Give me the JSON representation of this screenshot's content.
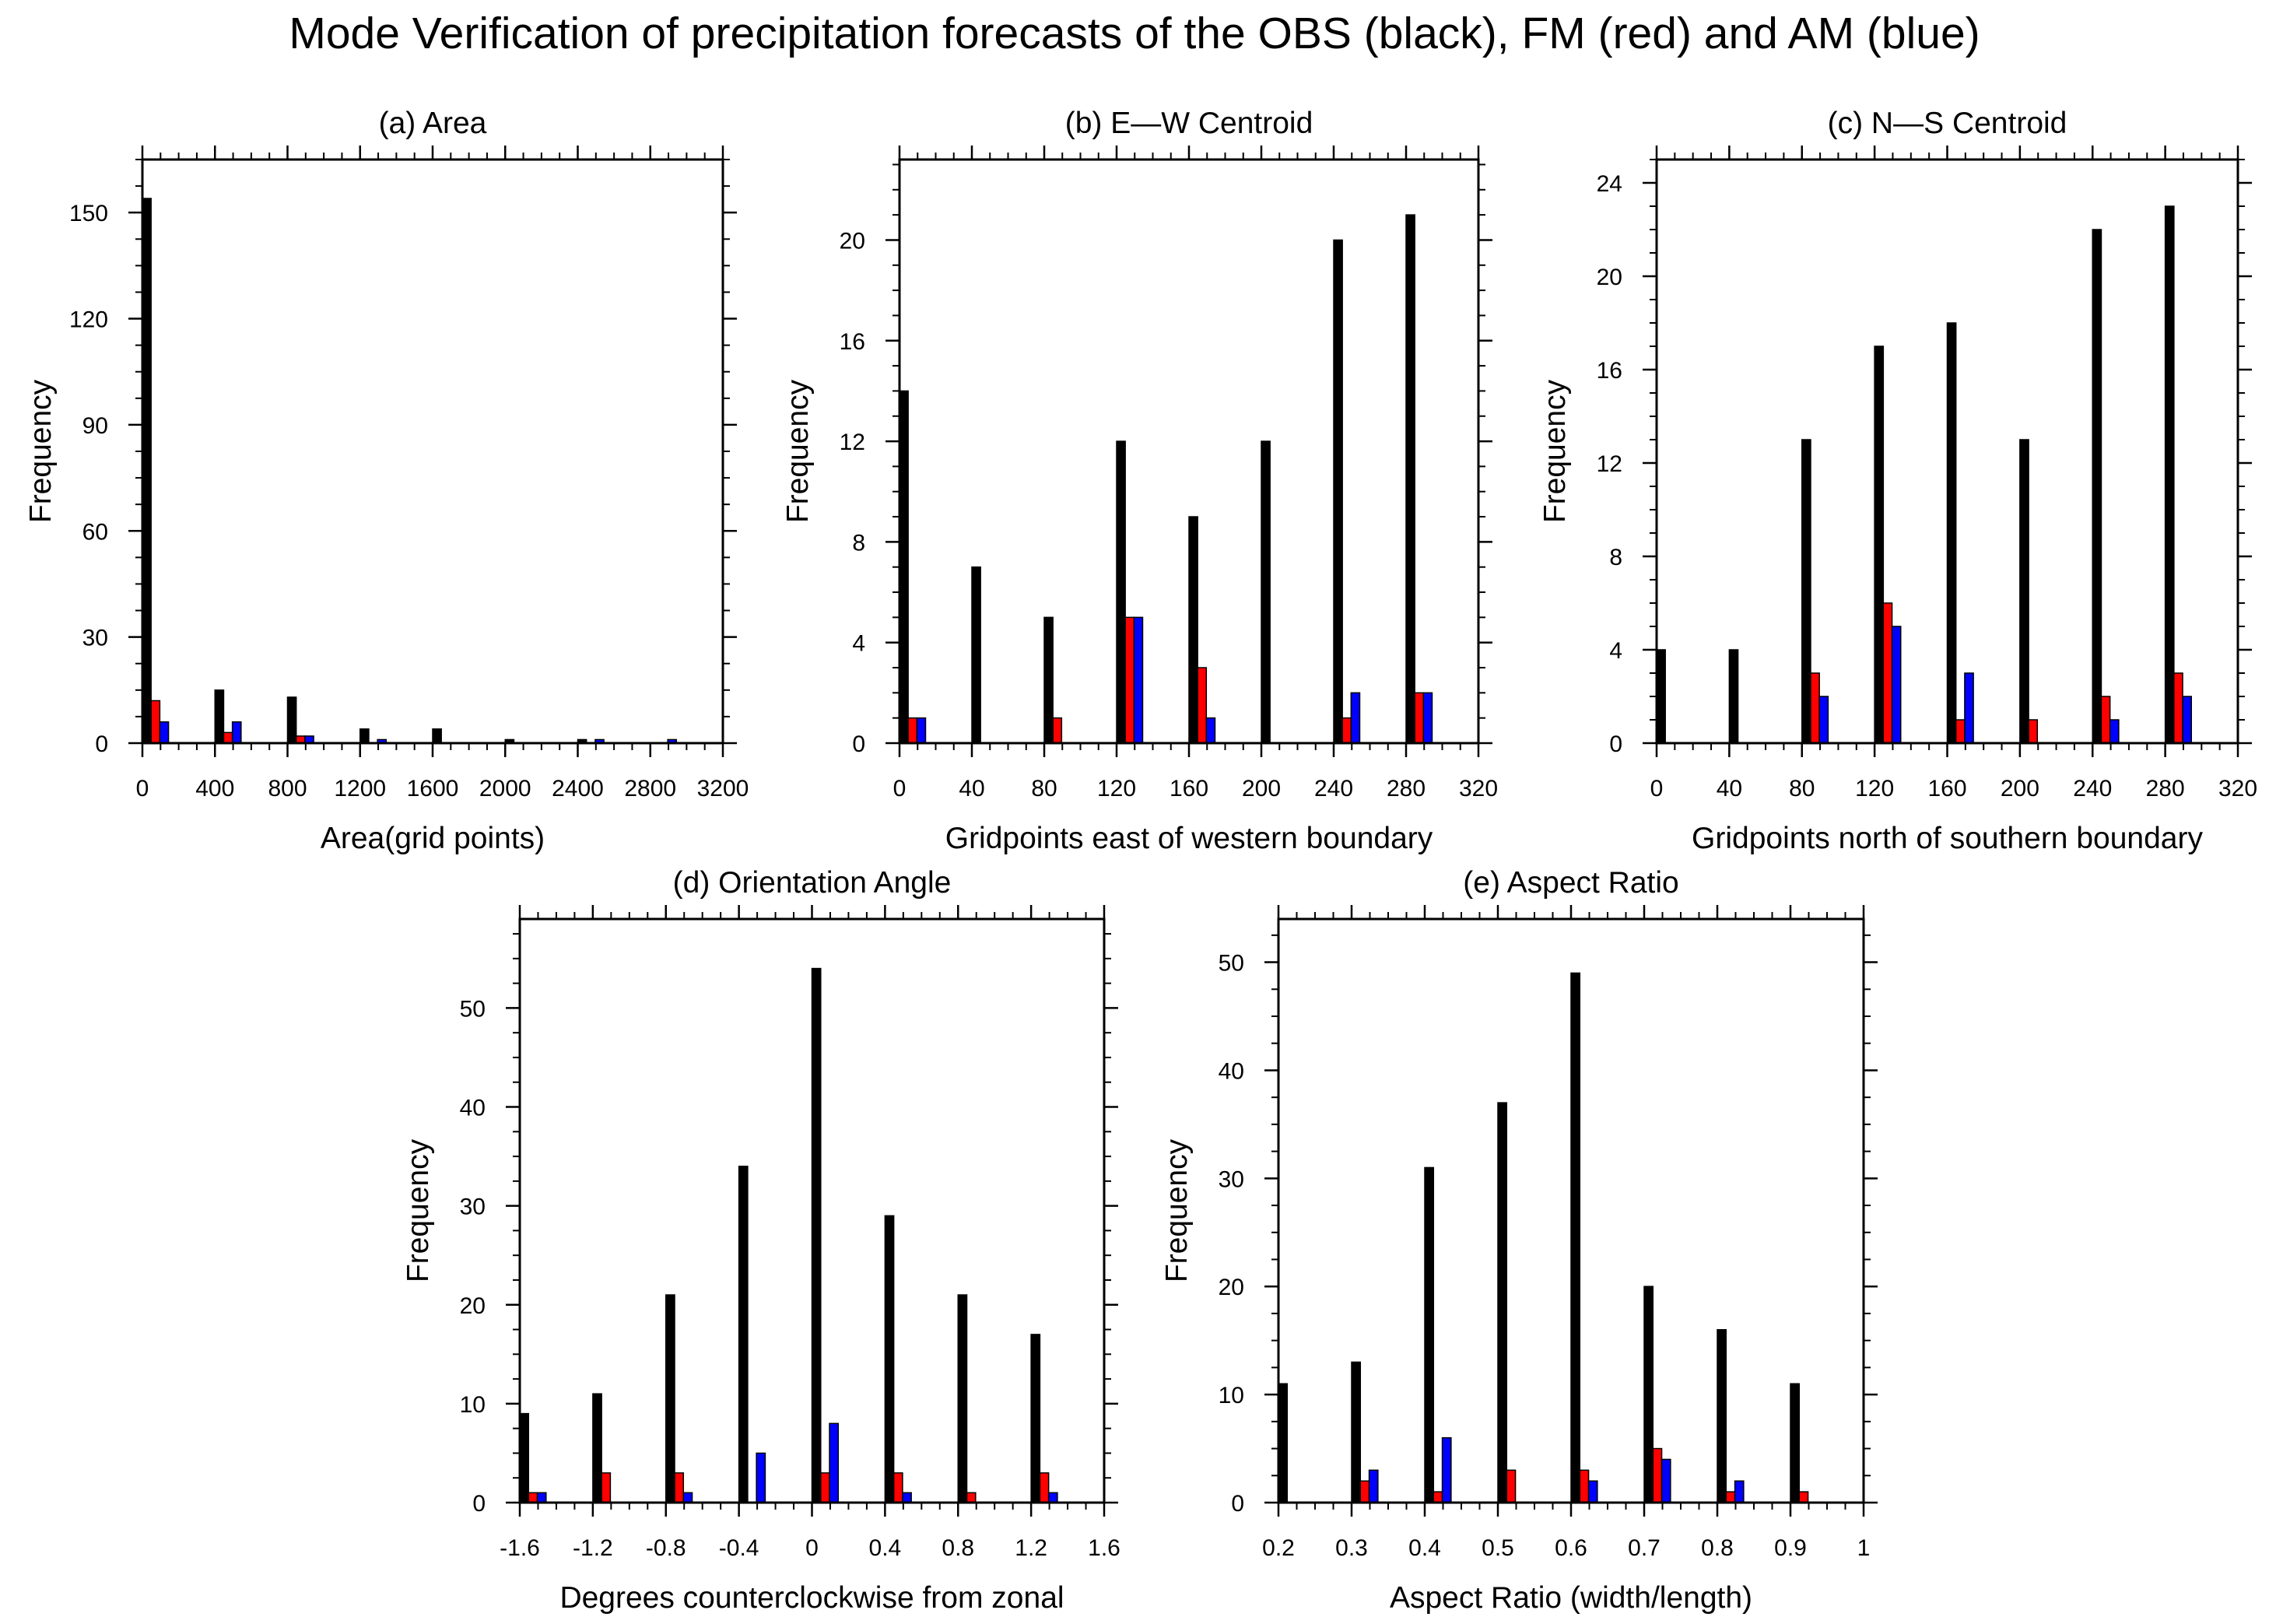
{
  "figure": {
    "title": "Mode Verification of precipitation forecasts of the OBS (black), FM (red) and AM (blue)",
    "colors": {
      "OBS": "#000000",
      "FM": "#ff0000",
      "AM": "#0000ff"
    }
  },
  "chart_data": [
    {
      "type": "bar",
      "title": "(a) Area",
      "xlabel": "Area(grid points)",
      "ylabel": "Frequency",
      "xlim": [
        0,
        3200
      ],
      "ylim": [
        0,
        165
      ],
      "xticks": [
        0,
        400,
        800,
        1200,
        1600,
        2000,
        2400,
        2800,
        3200
      ],
      "xtick_labels": [
        "0",
        "400",
        "800",
        "1200",
        "1600",
        "2000",
        "2400",
        "2800",
        "3200"
      ],
      "yticks": [
        0,
        30,
        60,
        90,
        120,
        150
      ],
      "ytick_labels": [
        "0",
        "30",
        "60",
        "90",
        "120",
        "150"
      ],
      "x": [
        0,
        400,
        800,
        1200,
        1600,
        2000,
        2400,
        2800
      ],
      "series": [
        {
          "values": [
            154,
            15,
            13,
            4,
            4,
            1,
            1,
            0
          ]
        },
        {
          "values": [
            12,
            3,
            2,
            0,
            0,
            0,
            0,
            0
          ]
        },
        {
          "values": [
            6,
            6,
            2,
            1,
            0,
            0,
            1,
            1
          ]
        }
      ]
    },
    {
      "type": "bar",
      "title": "(b) E—W Centroid",
      "xlabel": "Gridpoints east of western boundary",
      "ylabel": "Frequency",
      "xlim": [
        0,
        320
      ],
      "ylim": [
        0,
        23.2
      ],
      "xticks": [
        0,
        40,
        80,
        120,
        160,
        200,
        240,
        280,
        320
      ],
      "xtick_labels": [
        "0",
        "40",
        "80",
        "120",
        "160",
        "200",
        "240",
        "280",
        "320"
      ],
      "yticks": [
        0,
        4,
        8,
        12,
        16,
        20
      ],
      "ytick_labels": [
        "0",
        "4",
        "8",
        "12",
        "16",
        "20"
      ],
      "x": [
        0,
        40,
        80,
        120,
        160,
        200,
        240,
        280
      ],
      "series": [
        {
          "values": [
            14,
            7,
            5,
            12,
            9,
            12,
            20,
            21
          ]
        },
        {
          "values": [
            1,
            0,
            1,
            5,
            3,
            0,
            1,
            2
          ]
        },
        {
          "values": [
            1,
            0,
            0,
            5,
            1,
            0,
            2,
            2
          ]
        }
      ]
    },
    {
      "type": "bar",
      "title": "(c) N—S Centroid",
      "xlabel": "Gridpoints north of southern boundary",
      "ylabel": "Frequency",
      "xlim": [
        0,
        320
      ],
      "ylim": [
        0,
        25
      ],
      "xticks": [
        0,
        40,
        80,
        120,
        160,
        200,
        240,
        280,
        320
      ],
      "xtick_labels": [
        "0",
        "40",
        "80",
        "120",
        "160",
        "200",
        "240",
        "280",
        "320"
      ],
      "yticks": [
        0,
        4,
        8,
        12,
        16,
        20,
        24
      ],
      "ytick_labels": [
        "0",
        "4",
        "8",
        "12",
        "16",
        "20",
        "24"
      ],
      "x": [
        0,
        40,
        80,
        120,
        160,
        200,
        240,
        280
      ],
      "series": [
        {
          "values": [
            4,
            4,
            13,
            17,
            18,
            13,
            22,
            23
          ]
        },
        {
          "values": [
            0,
            0,
            3,
            6,
            1,
            1,
            2,
            3
          ]
        },
        {
          "values": [
            0,
            0,
            2,
            5,
            3,
            0,
            1,
            2
          ]
        }
      ]
    },
    {
      "type": "bar",
      "title": "(d) Orientation Angle",
      "xlabel": "Degrees counterclockwise from zonal",
      "ylabel": "Frequency",
      "xlim": [
        -1.6,
        1.6
      ],
      "ylim": [
        0,
        59
      ],
      "xticks": [
        -1.6,
        -1.2,
        -0.8,
        -0.4,
        0,
        0.4,
        0.8,
        1.2,
        1.6
      ],
      "xtick_labels": [
        "-1.6",
        "-1.2",
        "-0.8",
        "-0.4",
        "0",
        "0.4",
        "0.8",
        "1.2",
        "1.6"
      ],
      "yticks": [
        0,
        10,
        20,
        30,
        40,
        50
      ],
      "ytick_labels": [
        "0",
        "10",
        "20",
        "30",
        "40",
        "50"
      ],
      "x": [
        -1.6,
        -1.2,
        -0.8,
        -0.4,
        0,
        0.4,
        0.8,
        1.2
      ],
      "series": [
        {
          "values": [
            9,
            11,
            21,
            34,
            54,
            29,
            21,
            17
          ]
        },
        {
          "values": [
            1,
            3,
            3,
            0,
            3,
            3,
            1,
            3
          ]
        },
        {
          "values": [
            1,
            0,
            1,
            5,
            8,
            1,
            0,
            1
          ]
        }
      ]
    },
    {
      "type": "bar",
      "title": "(e) Aspect Ratio",
      "xlabel": "Aspect Ratio (width/length)",
      "ylabel": "Frequency",
      "xlim": [
        0.2,
        1
      ],
      "ylim": [
        0,
        54
      ],
      "xticks": [
        0.2,
        0.3,
        0.4,
        0.5,
        0.6,
        0.7,
        0.8,
        0.9,
        1
      ],
      "xtick_labels": [
        "0.2",
        "0.3",
        "0.4",
        "0.5",
        "0.6",
        "0.7",
        "0.8",
        "0.9",
        "1"
      ],
      "yticks": [
        0,
        10,
        20,
        30,
        40,
        50
      ],
      "ytick_labels": [
        "0",
        "10",
        "20",
        "30",
        "40",
        "50"
      ],
      "x": [
        0.2,
        0.3,
        0.4,
        0.5,
        0.6,
        0.7,
        0.8,
        0.9
      ],
      "series": [
        {
          "values": [
            11,
            13,
            31,
            37,
            49,
            20,
            16,
            11
          ]
        },
        {
          "values": [
            0,
            2,
            1,
            3,
            3,
            5,
            1,
            1
          ]
        },
        {
          "values": [
            0,
            3,
            6,
            0,
            2,
            4,
            2,
            0
          ]
        }
      ]
    }
  ]
}
